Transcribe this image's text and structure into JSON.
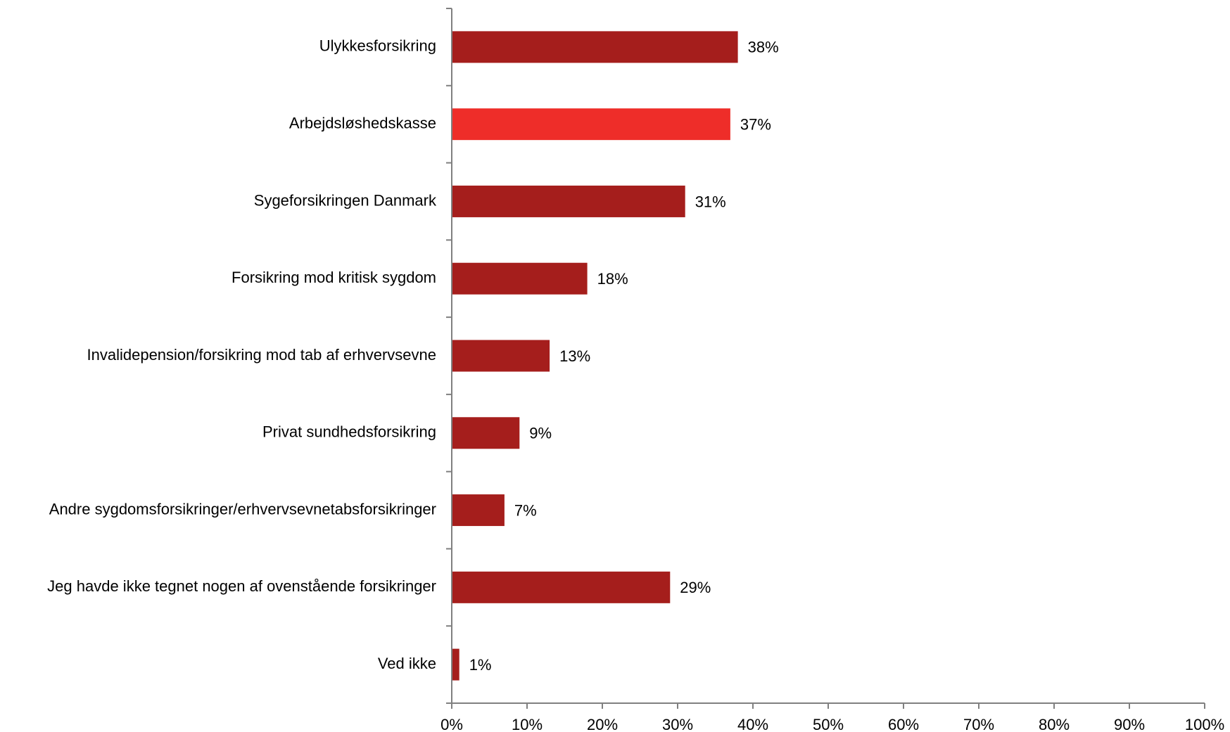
{
  "chart_data": {
    "type": "bar",
    "orientation": "horizontal",
    "categories": [
      "Ulykkesforsikring",
      "Arbejdsløshedskasse",
      "Sygeforsikringen Danmark",
      "Forsikring mod kritisk sygdom",
      "Invalidepension/forsikring mod tab af erhvervsevne",
      "Privat sundhedsforsikring",
      "Andre sygdomsforsikringer/erhvervsevnetabsforsikringer",
      "Jeg havde ikke tegnet nogen af ovenstående forsikringer",
      "Ved ikke"
    ],
    "values": [
      38,
      37,
      31,
      18,
      13,
      9,
      7,
      29,
      1
    ],
    "value_labels": [
      "38%",
      "37%",
      "31%",
      "18%",
      "13%",
      "9%",
      "7%",
      "29%",
      "1%"
    ],
    "bar_colors": [
      "#a51e1c",
      "#ee2d29",
      "#a51e1c",
      "#a51e1c",
      "#a51e1c",
      "#a51e1c",
      "#a51e1c",
      "#a51e1c",
      "#a51e1c"
    ],
    "xlim": [
      0,
      100
    ],
    "x_ticks": [
      0,
      10,
      20,
      30,
      40,
      50,
      60,
      70,
      80,
      90,
      100
    ],
    "x_tick_labels": [
      "0%",
      "10%",
      "20%",
      "30%",
      "40%",
      "50%",
      "60%",
      "70%",
      "80%",
      "90%",
      "100%"
    ],
    "title": "",
    "xlabel": "",
    "ylabel": "",
    "grid": false,
    "legend": "none"
  }
}
